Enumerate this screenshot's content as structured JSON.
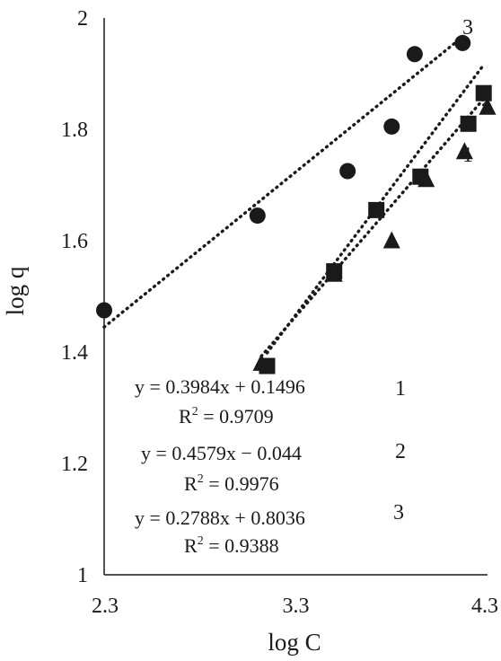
{
  "chart_data": {
    "type": "scatter",
    "xlabel": "log C",
    "ylabel": "log q",
    "xlim": [
      2.3,
      4.3
    ],
    "ylim": [
      1,
      2
    ],
    "x_ticks": [
      "2.3",
      "3.3",
      "4.3"
    ],
    "y_ticks": [
      "1",
      "1.2",
      "1.4",
      "1.6",
      "1.8",
      "2"
    ],
    "grid": false,
    "series": [
      {
        "name": "1",
        "marker": "triangle",
        "x": [
          3.12,
          3.5,
          3.8,
          3.98,
          4.18,
          4.3
        ],
        "y": [
          1.38,
          1.54,
          1.6,
          1.71,
          1.76,
          1.84
        ],
        "trend": {
          "slope": 0.3984,
          "intercept": 0.1496
        }
      },
      {
        "name": "2",
        "marker": "square",
        "x": [
          3.15,
          3.5,
          3.72,
          3.95,
          4.2,
          4.28
        ],
        "y": [
          1.375,
          1.545,
          1.655,
          1.715,
          1.81,
          1.865
        ],
        "trend": {
          "slope": 0.4579,
          "intercept": -0.044
        }
      },
      {
        "name": "3",
        "marker": "circle",
        "x": [
          2.3,
          3.1,
          3.57,
          3.8,
          3.92,
          4.17
        ],
        "y": [
          1.475,
          1.645,
          1.725,
          1.805,
          1.935,
          1.955
        ],
        "trend": {
          "slope": 0.2788,
          "intercept": 0.8036
        }
      }
    ],
    "annotations": {
      "series_numbers": [
        "3",
        "2",
        "1"
      ],
      "equations": [
        {
          "eq": "y = 0.3984x + 0.1496",
          "r2_label": "R",
          "r2_sup": "2",
          "r2_value": " = 0.9709",
          "num": "1"
        },
        {
          "eq": "y = 0.4579x − 0.044",
          "r2_label": "R",
          "r2_sup": "2",
          "r2_value": " = 0.9976",
          "num": "2"
        },
        {
          "eq": "y = 0.2788x + 0.8036",
          "r2_label": "R",
          "r2_sup": "2",
          "r2_value": " = 0.9388",
          "num": "3"
        }
      ]
    }
  },
  "colors": {
    "ink": "#1a1a1a",
    "background": "#ffffff"
  }
}
